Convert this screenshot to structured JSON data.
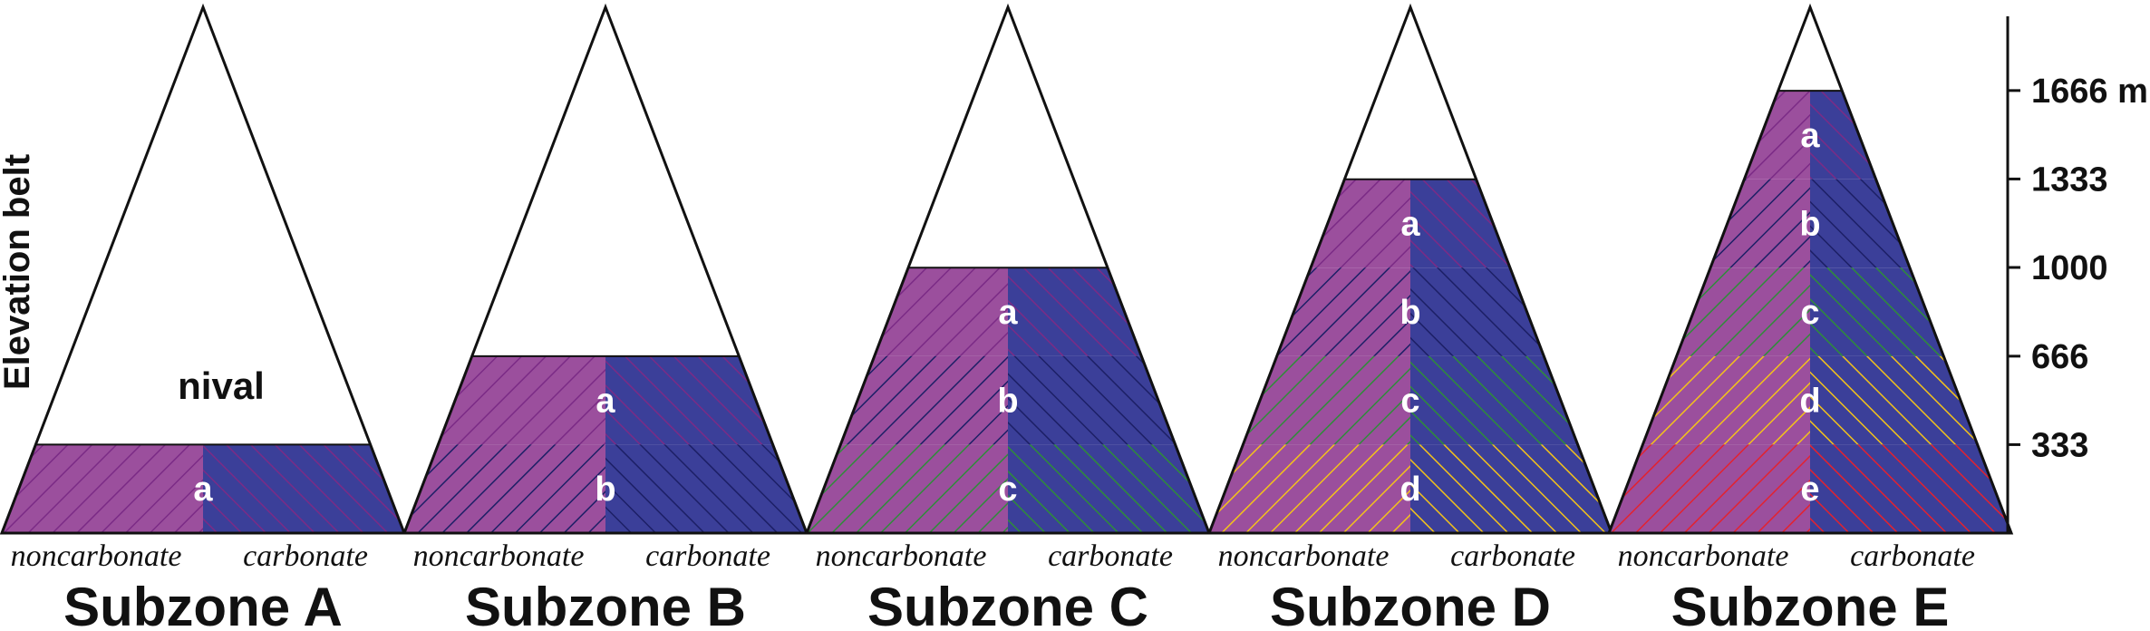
{
  "axis": {
    "label": "Elevation belt",
    "ticks": [
      {
        "value": 333,
        "label": "333"
      },
      {
        "value": 666,
        "label": "666"
      },
      {
        "value": 1000,
        "label": "1000"
      },
      {
        "value": 1333,
        "label": "1333"
      },
      {
        "value": 1666,
        "label": "1666 m"
      }
    ],
    "max_value": 2250
  },
  "labels": {
    "noncarbonate": "noncarbonate",
    "carbonate": "carbonate",
    "nival": "nival"
  },
  "colors": {
    "noncarbonate_fill": "#9b4f9d",
    "carbonate_fill": "#3b3f99",
    "outline": "#111111",
    "hatch": {
      "purple": "#7b2b86",
      "navy": "#1c1f66",
      "green": "#2f8c3a",
      "yellow": "#f3c21a",
      "red": "#e3222f"
    }
  },
  "subzones": [
    {
      "title": "Subzone A",
      "nival_label": true,
      "bands": [
        {
          "letter": "a",
          "hatch": "purple"
        }
      ]
    },
    {
      "title": "Subzone B",
      "nival_label": false,
      "bands": [
        {
          "letter": "a",
          "hatch": "purple"
        },
        {
          "letter": "b",
          "hatch": "navy"
        }
      ]
    },
    {
      "title": "Subzone C",
      "nival_label": false,
      "bands": [
        {
          "letter": "a",
          "hatch": "purple"
        },
        {
          "letter": "b",
          "hatch": "navy"
        },
        {
          "letter": "c",
          "hatch": "green"
        }
      ]
    },
    {
      "title": "Subzone D",
      "nival_label": false,
      "bands": [
        {
          "letter": "a",
          "hatch": "purple"
        },
        {
          "letter": "b",
          "hatch": "navy"
        },
        {
          "letter": "c",
          "hatch": "green"
        },
        {
          "letter": "d",
          "hatch": "yellow"
        }
      ]
    },
    {
      "title": "Subzone E",
      "nival_label": false,
      "bands": [
        {
          "letter": "a",
          "hatch": "purple"
        },
        {
          "letter": "b",
          "hatch": "navy"
        },
        {
          "letter": "c",
          "hatch": "green"
        },
        {
          "letter": "d",
          "hatch": "yellow"
        },
        {
          "letter": "e",
          "hatch": "red"
        }
      ]
    }
  ]
}
